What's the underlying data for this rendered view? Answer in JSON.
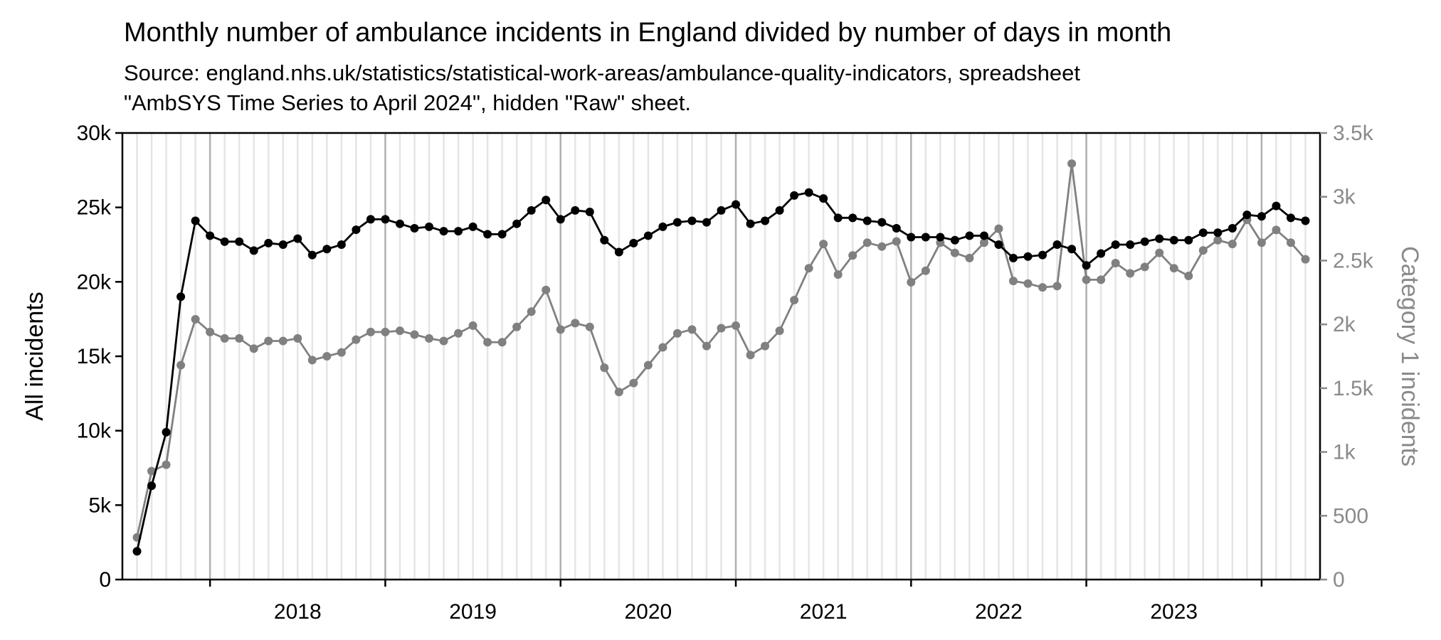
{
  "chart_data": {
    "type": "line",
    "title": "Monthly number of ambulance incidents in England divided by number of days in month",
    "subtitle_lines": [
      "Source: england.nhs.uk/statistics/statistical-work-areas/ambulance-quality-indicators, spreadsheet",
      "\"AmbSYS Time Series to April 2024\", hidden \"Raw\" sheet."
    ],
    "ylabel_left": "All incidents",
    "ylabel_right": "Category 1 incidents",
    "ylim_left": [
      0,
      30000
    ],
    "ylim_right": [
      0,
      3500
    ],
    "yticks_left": [
      {
        "value": 0,
        "label": "0"
      },
      {
        "value": 5000,
        "label": "5k"
      },
      {
        "value": 10000,
        "label": "10k"
      },
      {
        "value": 15000,
        "label": "15k"
      },
      {
        "value": 20000,
        "label": "20k"
      },
      {
        "value": 25000,
        "label": "25k"
      },
      {
        "value": 30000,
        "label": "30k"
      }
    ],
    "yticks_right": [
      {
        "value": 0,
        "label": "0"
      },
      {
        "value": 500,
        "label": "500"
      },
      {
        "value": 1000,
        "label": "1k"
      },
      {
        "value": 1500,
        "label": "1.5k"
      },
      {
        "value": 2000,
        "label": "2k"
      },
      {
        "value": 2500,
        "label": "2.5k"
      },
      {
        "value": 3000,
        "label": "3k"
      },
      {
        "value": 3500,
        "label": "3.5k"
      }
    ],
    "xlim": [
      "2017-07",
      "2024-05"
    ],
    "year_labels": [
      "2018",
      "2019",
      "2020",
      "2021",
      "2022",
      "2023"
    ],
    "grid": "vertical monthly lines, darker at each January",
    "colors": {
      "all": "#000000",
      "cat1": "#808080",
      "grid_month": "#e5e5e5",
      "grid_year": "#b0b0b0"
    },
    "x": [
      "2017-08",
      "2017-09",
      "2017-10",
      "2017-11",
      "2017-12",
      "2018-01",
      "2018-02",
      "2018-03",
      "2018-04",
      "2018-05",
      "2018-06",
      "2018-07",
      "2018-08",
      "2018-09",
      "2018-10",
      "2018-11",
      "2018-12",
      "2019-01",
      "2019-02",
      "2019-03",
      "2019-04",
      "2019-05",
      "2019-06",
      "2019-07",
      "2019-08",
      "2019-09",
      "2019-10",
      "2019-11",
      "2019-12",
      "2020-01",
      "2020-02",
      "2020-03",
      "2020-04",
      "2020-05",
      "2020-06",
      "2020-07",
      "2020-08",
      "2020-09",
      "2020-10",
      "2020-11",
      "2020-12",
      "2021-01",
      "2021-02",
      "2021-03",
      "2021-04",
      "2021-05",
      "2021-06",
      "2021-07",
      "2021-08",
      "2021-09",
      "2021-10",
      "2021-11",
      "2021-12",
      "2022-01",
      "2022-02",
      "2022-03",
      "2022-04",
      "2022-05",
      "2022-06",
      "2022-07",
      "2022-08",
      "2022-09",
      "2022-10",
      "2022-11",
      "2022-12",
      "2023-01",
      "2023-02",
      "2023-03",
      "2023-04",
      "2023-05",
      "2023-06",
      "2023-07",
      "2023-08",
      "2023-09",
      "2023-10",
      "2023-11",
      "2023-12",
      "2024-01",
      "2024-02",
      "2024-03",
      "2024-04"
    ],
    "series": [
      {
        "name": "All incidents",
        "axis": "left",
        "values": [
          1900,
          6300,
          9900,
          19000,
          24100,
          23100,
          22700,
          22700,
          22100,
          22600,
          22500,
          22900,
          21800,
          22200,
          22500,
          23500,
          24200,
          24200,
          23900,
          23600,
          23700,
          23400,
          23400,
          23700,
          23200,
          23200,
          23900,
          24800,
          25500,
          24200,
          24800,
          24700,
          22800,
          22000,
          22600,
          23100,
          23700,
          24000,
          24100,
          24000,
          24800,
          25200,
          23900,
          24100,
          24800,
          25800,
          26000,
          25600,
          24300,
          24300,
          24100,
          24000,
          23600,
          23000,
          23000,
          23000,
          22800,
          23100,
          23100,
          22500,
          21600,
          21700,
          21800,
          22500,
          22200,
          21100,
          21900,
          22500,
          22500,
          22700,
          22900,
          22800,
          22800,
          23300,
          23300,
          23600,
          24500,
          24400,
          25100,
          24300,
          24100
        ]
      },
      {
        "name": "Category 1 incidents",
        "axis": "right",
        "values": [
          330,
          850,
          900,
          1680,
          2040,
          1940,
          1890,
          1890,
          1810,
          1870,
          1870,
          1890,
          1720,
          1750,
          1780,
          1880,
          1940,
          1940,
          1950,
          1920,
          1890,
          1870,
          1930,
          1990,
          1860,
          1860,
          1980,
          2100,
          2270,
          1960,
          2010,
          1980,
          1660,
          1470,
          1540,
          1680,
          1820,
          1930,
          1960,
          1830,
          1970,
          1990,
          1760,
          1830,
          1950,
          2190,
          2440,
          2630,
          2390,
          2540,
          2640,
          2610,
          2650,
          2330,
          2420,
          2640,
          2560,
          2520,
          2640,
          2750,
          2340,
          2320,
          2290,
          2300,
          3260,
          2350,
          2350,
          2480,
          2400,
          2450,
          2560,
          2440,
          2380,
          2580,
          2660,
          2630,
          2820,
          2640,
          2740,
          2640,
          2510
        ]
      }
    ]
  }
}
